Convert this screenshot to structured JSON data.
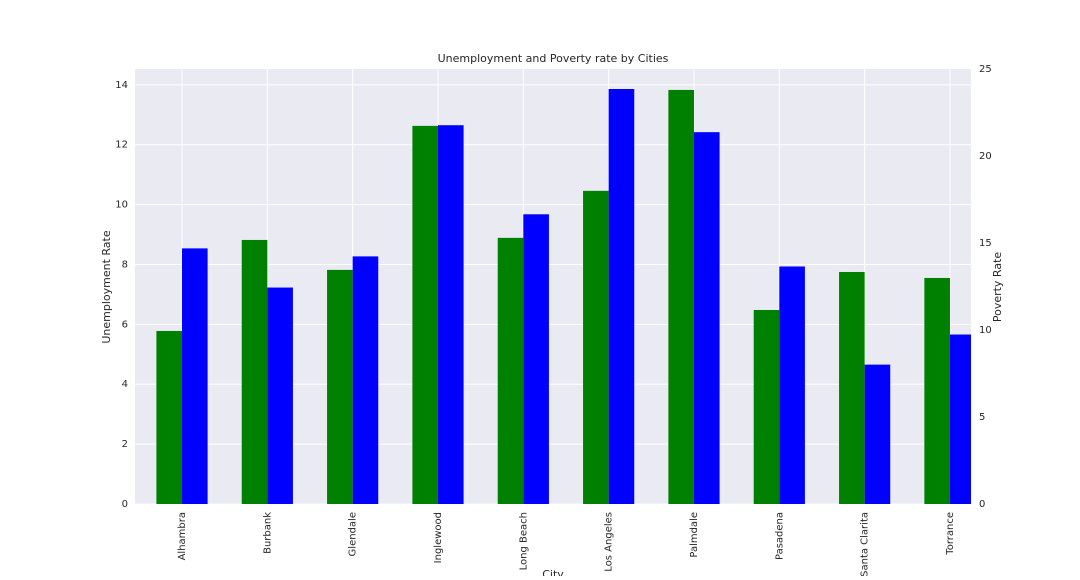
{
  "chart_data": {
    "type": "bar",
    "title": "Unemployment and Poverty rate by Cities",
    "x_label": "City",
    "y_label": "Unemployment Rate",
    "y2_label": "Poverty Rate",
    "categories": [
      "Alhambra",
      "Burbank",
      "Glendale",
      "Inglewood",
      "Long Beach",
      "Los Angeles",
      "Palmdale",
      "Pasadena",
      "Santa Clarita",
      "Torrance"
    ],
    "series": [
      {
        "name": "Unemployment Rate",
        "color": "#008000",
        "values": [
          5.78,
          8.82,
          7.82,
          12.63,
          8.89,
          10.46,
          13.83,
          6.48,
          7.75,
          7.55
        ]
      },
      {
        "name": "Poverty Rate",
        "color": "#0000ff",
        "axis": "y2",
        "values": [
          14.69,
          12.44,
          14.23,
          21.77,
          16.65,
          23.85,
          21.37,
          13.65,
          8.01,
          9.74
        ]
      }
    ],
    "ylim": [
      0,
      14.53
    ],
    "yticks": [
      0,
      2,
      4,
      6,
      8,
      10,
      12,
      14
    ],
    "y2lim": [
      0,
      25
    ],
    "y2ticks": [
      0,
      5,
      10,
      15,
      20,
      25
    ],
    "grid": true
  }
}
